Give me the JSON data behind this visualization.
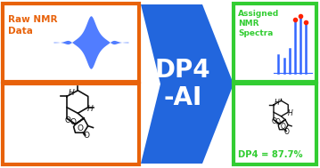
{
  "bg_color": "#ffffff",
  "orange_border": "#E8620A",
  "green_border": "#32CD32",
  "blue_arrow_color": "#2266DD",
  "white_text": "#ffffff",
  "orange_text": "#E8620A",
  "green_text": "#32CD32",
  "dp4_text": "DP4\n-AI",
  "raw_nmr_text": "Raw NMR\nData",
  "assigned_text": "Assigned\nNMR\nSpectra",
  "dp4_result_text": "DP4 = 87.7%",
  "nmr_peak_color": "#3366FF",
  "nmr_peak_red": "#FF2200",
  "mol_line_color": "#111111",
  "fig_w": 3.59,
  "fig_h": 1.89,
  "dpi": 100
}
